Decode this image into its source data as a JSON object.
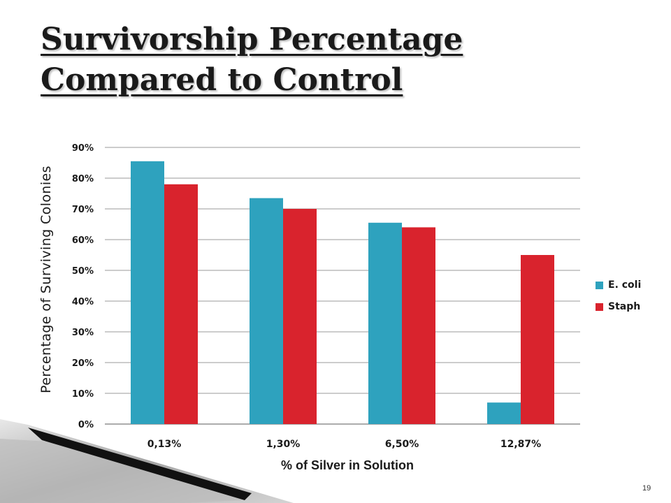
{
  "title": {
    "line1": "Survivorship Percentage",
    "line2": "Compared to Control"
  },
  "page_number": "19",
  "colors": {
    "ecoli": "#2ea2be",
    "staph": "#d9232d",
    "grid": "#9a9a9a"
  },
  "chart_data": {
    "type": "bar",
    "title": "",
    "xlabel": "% of Silver in Solution",
    "ylabel": "Percentage of Surviving Colonies",
    "categories": [
      "0,13%",
      "1,30%",
      "6,50%",
      "12,87%"
    ],
    "series": [
      {
        "name": "E. coli",
        "values": [
          85.5,
          73.5,
          65.5,
          7
        ]
      },
      {
        "name": "Staph",
        "values": [
          78,
          70,
          64,
          55
        ]
      }
    ],
    "ylim": [
      0,
      90
    ],
    "yticks": [
      "0%",
      "10%",
      "20%",
      "30%",
      "40%",
      "50%",
      "60%",
      "70%",
      "80%",
      "90%"
    ],
    "grid": true,
    "legend": "right"
  }
}
